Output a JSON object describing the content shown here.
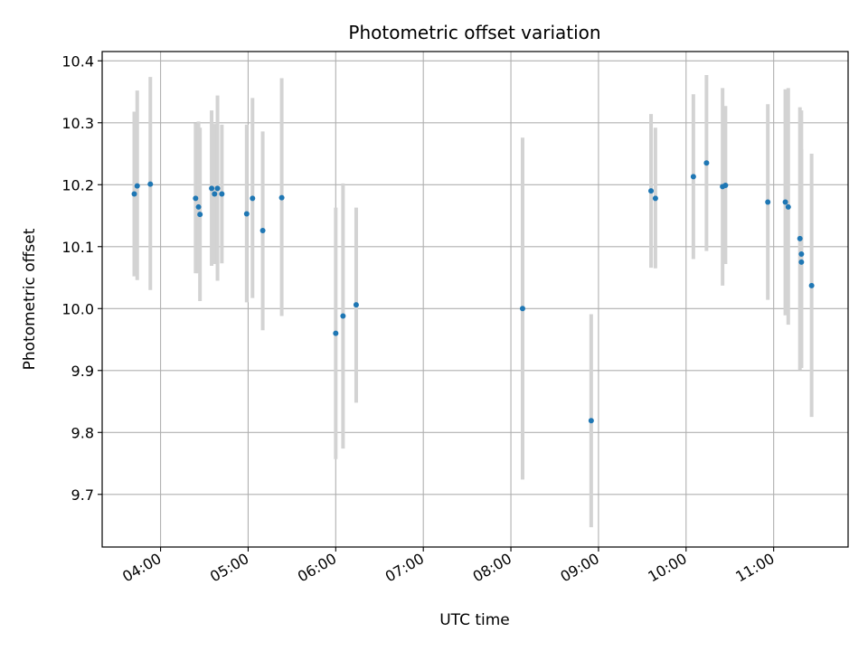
{
  "chart_data": {
    "type": "scatter",
    "title": "Photometric offset variation",
    "xlabel": "UTC time",
    "ylabel": "Photometric offset",
    "x_axis_kind": "time",
    "xlim": [
      "03:20",
      "11:51"
    ],
    "ylim": [
      9.615,
      10.415
    ],
    "x_ticks": [
      "04:00",
      "05:00",
      "06:00",
      "07:00",
      "08:00",
      "09:00",
      "10:00",
      "11:00"
    ],
    "y_ticks": [
      "9.7",
      "9.8",
      "9.9",
      "10.0",
      "10.1",
      "10.2",
      "10.3",
      "10.4"
    ],
    "grid": true,
    "marker_color": "#1f77b4",
    "errorbar_color": "#d3d3d3",
    "series": [
      {
        "points": [
          {
            "x": "03:42",
            "y": 10.185,
            "lo": 10.052,
            "hi": 10.318
          },
          {
            "x": "03:44",
            "y": 10.198,
            "lo": 10.046,
            "hi": 10.352
          },
          {
            "x": "03:53",
            "y": 10.201,
            "lo": 10.03,
            "hi": 10.374
          },
          {
            "x": "04:24",
            "y": 10.178,
            "lo": 10.057,
            "hi": 10.299
          },
          {
            "x": "04:26",
            "y": 10.164,
            "lo": 10.057,
            "hi": 10.302
          },
          {
            "x": "04:27",
            "y": 10.152,
            "lo": 10.012,
            "hi": 10.292
          },
          {
            "x": "04:35",
            "y": 10.194,
            "lo": 10.069,
            "hi": 10.32
          },
          {
            "x": "04:37",
            "y": 10.185,
            "lo": 10.072,
            "hi": 10.298
          },
          {
            "x": "04:39",
            "y": 10.194,
            "lo": 10.045,
            "hi": 10.344
          },
          {
            "x": "04:42",
            "y": 10.185,
            "lo": 10.073,
            "hi": 10.297
          },
          {
            "x": "04:59",
            "y": 10.153,
            "lo": 10.01,
            "hi": 10.297
          },
          {
            "x": "05:03",
            "y": 10.178,
            "lo": 10.017,
            "hi": 10.34
          },
          {
            "x": "05:10",
            "y": 10.126,
            "lo": 9.965,
            "hi": 10.286
          },
          {
            "x": "05:23",
            "y": 10.179,
            "lo": 9.988,
            "hi": 10.372
          },
          {
            "x": "06:00",
            "y": 9.96,
            "lo": 9.757,
            "hi": 10.163
          },
          {
            "x": "06:05",
            "y": 9.988,
            "lo": 9.774,
            "hi": 10.202
          },
          {
            "x": "06:14",
            "y": 10.006,
            "lo": 9.848,
            "hi": 10.163
          },
          {
            "x": "08:08",
            "y": 10.0,
            "lo": 9.724,
            "hi": 10.276
          },
          {
            "x": "08:55",
            "y": 9.819,
            "lo": 9.647,
            "hi": 9.991
          },
          {
            "x": "09:36",
            "y": 10.19,
            "lo": 10.066,
            "hi": 10.314
          },
          {
            "x": "09:39",
            "y": 10.178,
            "lo": 10.065,
            "hi": 10.292
          },
          {
            "x": "10:05",
            "y": 10.213,
            "lo": 10.08,
            "hi": 10.346
          },
          {
            "x": "10:14",
            "y": 10.235,
            "lo": 10.093,
            "hi": 10.377
          },
          {
            "x": "10:25",
            "y": 10.197,
            "lo": 10.037,
            "hi": 10.356
          },
          {
            "x": "10:27",
            "y": 10.199,
            "lo": 10.072,
            "hi": 10.327
          },
          {
            "x": "10:56",
            "y": 10.172,
            "lo": 10.014,
            "hi": 10.33
          },
          {
            "x": "11:08",
            "y": 10.172,
            "lo": 9.989,
            "hi": 10.354
          },
          {
            "x": "11:10",
            "y": 10.164,
            "lo": 9.974,
            "hi": 10.356
          },
          {
            "x": "11:18",
            "y": 10.113,
            "lo": 9.901,
            "hi": 10.325
          },
          {
            "x": "11:19",
            "y": 10.088,
            "lo": 9.905,
            "hi": 10.32
          },
          {
            "x": "11:19",
            "y": 10.075,
            "lo": 9.904,
            "hi": 10.258
          },
          {
            "x": "11:26",
            "y": 10.037,
            "lo": 9.825,
            "hi": 10.25
          }
        ]
      }
    ]
  }
}
